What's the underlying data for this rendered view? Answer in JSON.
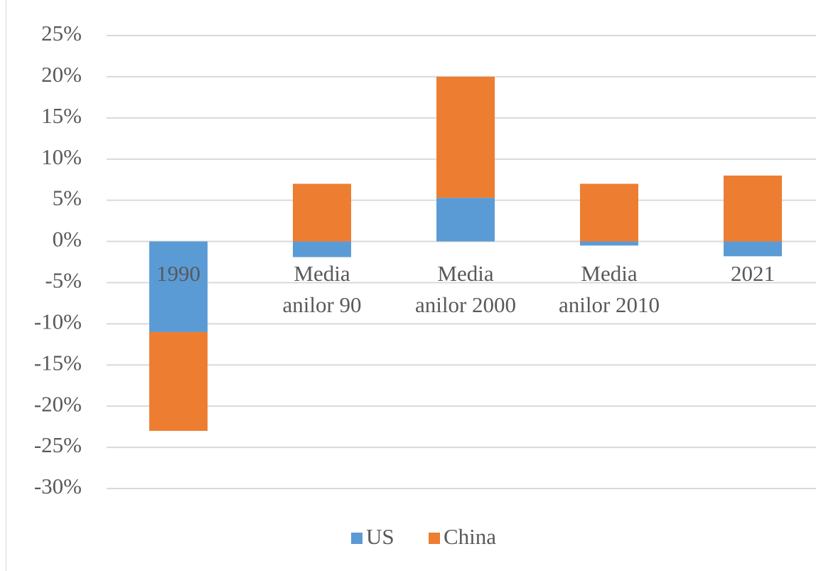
{
  "chart_data": {
    "type": "stacked_bar",
    "categories": [
      "1990",
      "Media anilor 90",
      "Media anilor 2000",
      "Media anilor 2010",
      "2021"
    ],
    "series": [
      {
        "name": "US",
        "color": "#5b9bd5",
        "values": [
          -11,
          -1.9,
          5.3,
          -0.5,
          -1.8
        ]
      },
      {
        "name": "China",
        "color": "#ed7d31",
        "values": [
          -12,
          7,
          14.7,
          7,
          8
        ]
      }
    ],
    "ylim": [
      -30,
      25
    ],
    "yticks": [
      {
        "value": 25,
        "label": "25%"
      },
      {
        "value": 20,
        "label": "20%"
      },
      {
        "value": 15,
        "label": "15%"
      },
      {
        "value": 10,
        "label": "10%"
      },
      {
        "value": 5,
        "label": "5%"
      },
      {
        "value": 0,
        "label": "0%"
      },
      {
        "value": -5,
        "label": "-5%"
      },
      {
        "value": -10,
        "label": "-10%"
      },
      {
        "value": -15,
        "label": "-15%"
      },
      {
        "value": -20,
        "label": "-20%"
      },
      {
        "value": -25,
        "label": "-25%"
      },
      {
        "value": -30,
        "label": "-30%"
      }
    ],
    "grid": true,
    "legend": "bottom"
  }
}
